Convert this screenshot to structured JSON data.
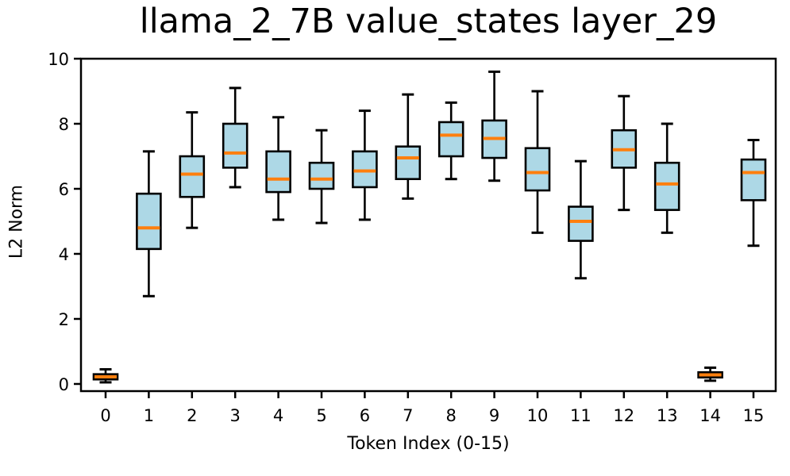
{
  "chart_data": {
    "type": "boxplot",
    "title": "llama_2_7B value_states layer_29",
    "xlabel": "Token Index (0-15)",
    "ylabel": "L2 Norm",
    "categories": [
      "0",
      "1",
      "2",
      "3",
      "4",
      "5",
      "6",
      "7",
      "8",
      "9",
      "10",
      "11",
      "12",
      "13",
      "14",
      "15"
    ],
    "yticks": [
      0,
      2,
      4,
      6,
      8,
      10
    ],
    "ylim": [
      -0.22,
      10.0
    ],
    "grid": false,
    "colors": {
      "box_fill": "#ADD8E6",
      "box_edge": "#000000",
      "median": "#FF7F0E",
      "whisker": "#000000",
      "background": "#FFFFFF"
    },
    "boxes": [
      {
        "token": "0",
        "whisker_low": 0.05,
        "q1": 0.14,
        "median": 0.22,
        "q3": 0.3,
        "whisker_high": 0.45
      },
      {
        "token": "1",
        "whisker_low": 2.7,
        "q1": 4.15,
        "median": 4.8,
        "q3": 5.85,
        "whisker_high": 7.15
      },
      {
        "token": "2",
        "whisker_low": 4.8,
        "q1": 5.75,
        "median": 6.45,
        "q3": 7.0,
        "whisker_high": 8.35
      },
      {
        "token": "3",
        "whisker_low": 6.05,
        "q1": 6.65,
        "median": 7.1,
        "q3": 8.0,
        "whisker_high": 9.1
      },
      {
        "token": "4",
        "whisker_low": 5.05,
        "q1": 5.9,
        "median": 6.3,
        "q3": 7.15,
        "whisker_high": 8.2
      },
      {
        "token": "5",
        "whisker_low": 4.95,
        "q1": 6.0,
        "median": 6.3,
        "q3": 6.8,
        "whisker_high": 7.8
      },
      {
        "token": "6",
        "whisker_low": 5.05,
        "q1": 6.05,
        "median": 6.55,
        "q3": 7.15,
        "whisker_high": 8.4
      },
      {
        "token": "7",
        "whisker_low": 5.7,
        "q1": 6.3,
        "median": 6.95,
        "q3": 7.3,
        "whisker_high": 8.9
      },
      {
        "token": "8",
        "whisker_low": 6.3,
        "q1": 7.0,
        "median": 7.65,
        "q3": 8.05,
        "whisker_high": 8.65
      },
      {
        "token": "9",
        "whisker_low": 6.25,
        "q1": 6.95,
        "median": 7.55,
        "q3": 8.1,
        "whisker_high": 9.6
      },
      {
        "token": "10",
        "whisker_low": 4.65,
        "q1": 5.95,
        "median": 6.5,
        "q3": 7.25,
        "whisker_high": 9.0
      },
      {
        "token": "11",
        "whisker_low": 3.25,
        "q1": 4.4,
        "median": 5.0,
        "q3": 5.45,
        "whisker_high": 6.85
      },
      {
        "token": "12",
        "whisker_low": 5.35,
        "q1": 6.65,
        "median": 7.2,
        "q3": 7.8,
        "whisker_high": 8.85
      },
      {
        "token": "13",
        "whisker_low": 4.65,
        "q1": 5.35,
        "median": 6.15,
        "q3": 6.8,
        "whisker_high": 8.0
      },
      {
        "token": "14",
        "whisker_low": 0.1,
        "q1": 0.2,
        "median": 0.28,
        "q3": 0.36,
        "whisker_high": 0.5
      },
      {
        "token": "15",
        "whisker_low": 4.25,
        "q1": 5.65,
        "median": 6.5,
        "q3": 6.9,
        "whisker_high": 7.5
      }
    ]
  }
}
